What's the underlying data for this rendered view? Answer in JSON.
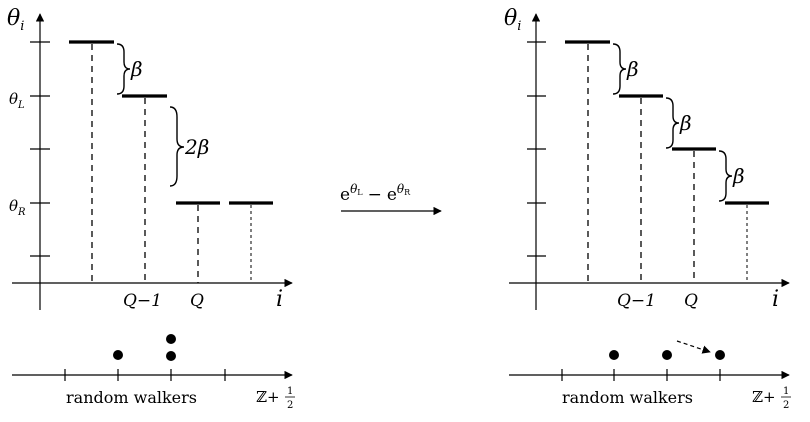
{
  "left_panel": {
    "y_axis_label": "θ",
    "y_axis_sub": "i",
    "theta_L_label": "θ",
    "theta_L_sub": "L",
    "theta_R_label": "θ",
    "theta_R_sub": "R",
    "x_axis_label": "i",
    "tick_q_minus_1": "Q−1",
    "tick_q": "Q",
    "brace_1": "β",
    "brace_2": "2β",
    "walkers_label": "random walkers",
    "lattice_label": "ℤ+",
    "lattice_frac_num": "1",
    "lattice_frac_den": "2"
  },
  "transition": {
    "rate_lhs": "e",
    "rate_lhs_exp": "θ",
    "rate_lhs_exp_sub": "L",
    "rate_minus": "−",
    "rate_rhs": "e",
    "rate_rhs_exp": "θ",
    "rate_rhs_exp_sub": "R"
  },
  "right_panel": {
    "y_axis_label": "θ",
    "y_axis_sub": "i",
    "x_axis_label": "i",
    "tick_q_minus_1": "Q−1",
    "tick_q": "Q",
    "brace_1": "β",
    "brace_2": "β",
    "brace_3": "β",
    "walkers_label": "random walkers",
    "lattice_label": "ℤ+",
    "lattice_frac_num": "1",
    "lattice_frac_den": "2"
  }
}
